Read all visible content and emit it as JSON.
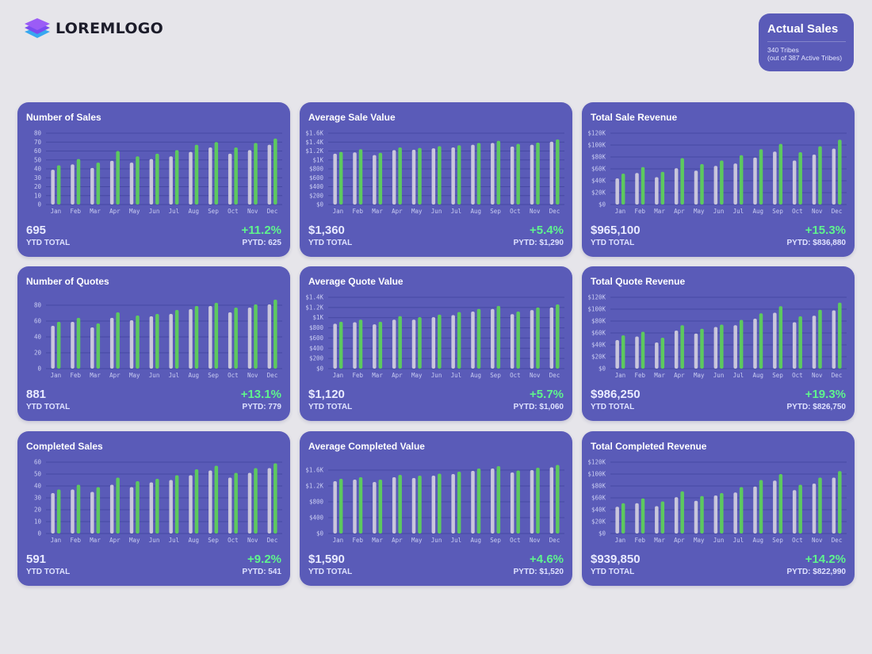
{
  "header": {
    "logo_text": "LOREMLOGO",
    "logo_icon": "stacked-layers-icon"
  },
  "summary": {
    "title": "Actual Sales",
    "line1": "340 Tribes",
    "line2": "(out of 387 Active Tribes)"
  },
  "colors": {
    "current_year_bar": "#5dc95f",
    "previous_year_bar": "#c9c6dc",
    "card_background": "#5a5bb8",
    "growth_text": "#5ff48d"
  },
  "cards": [
    {
      "title": "Number of Sales",
      "ytd_value": "695",
      "ytd_label": "YTD TOTAL",
      "growth": "+11.2%",
      "pytd": "PYTD: 625"
    },
    {
      "title": "Average Sale Value",
      "ytd_value": "$1,360",
      "ytd_label": "YTD TOTAL",
      "growth": "+5.4%",
      "pytd": "PYTD: $1,290"
    },
    {
      "title": "Total Sale Revenue",
      "ytd_value": "$965,100",
      "ytd_label": "YTD TOTAL",
      "growth": "+15.3%",
      "pytd": "PYTD: $836,880"
    },
    {
      "title": "Number of Quotes",
      "ytd_value": "881",
      "ytd_label": "YTD TOTAL",
      "growth": "+13.1%",
      "pytd": "PYTD: 779"
    },
    {
      "title": "Average Quote Value",
      "ytd_value": "$1,120",
      "ytd_label": "YTD TOTAL",
      "growth": "+5.7%",
      "pytd": "PYTD: $1,060"
    },
    {
      "title": "Total Quote Revenue",
      "ytd_value": "$986,250",
      "ytd_label": "YTD TOTAL",
      "growth": "+19.3%",
      "pytd": "PYTD: $826,750"
    },
    {
      "title": "Completed Sales",
      "ytd_value": "591",
      "ytd_label": "YTD TOTAL",
      "growth": "+9.2%",
      "pytd": "PYTD: 541"
    },
    {
      "title": "Average Completed Value",
      "ytd_value": "$1,590",
      "ytd_label": "YTD TOTAL",
      "growth": "+4.6%",
      "pytd": "PYTD: $1,520"
    },
    {
      "title": "Total Completed Revenue",
      "ytd_value": "$939,850",
      "ytd_label": "YTD TOTAL",
      "growth": "+14.2%",
      "pytd": "PYTD: $822,990"
    }
  ],
  "chart_data": [
    {
      "type": "bar",
      "title": "Number of Sales",
      "xlabel": "",
      "ylabel": "",
      "categories": [
        "Jan",
        "Feb",
        "Mar",
        "Apr",
        "May",
        "Jun",
        "Jul",
        "Aug",
        "Sep",
        "Oct",
        "Nov",
        "Dec"
      ],
      "ylim": [
        0,
        80
      ],
      "yticks": [
        0,
        10,
        20,
        30,
        40,
        50,
        60,
        70,
        80
      ],
      "ytick_labels": [
        "0",
        "10",
        "20",
        "30",
        "40",
        "50",
        "60",
        "70",
        "80"
      ],
      "series": [
        {
          "values": [
            39,
            45,
            41,
            49,
            47,
            51,
            54,
            59,
            64,
            57,
            61,
            67
          ]
        },
        {
          "values": [
            44,
            51,
            47,
            60,
            54,
            57,
            61,
            67,
            70,
            64,
            69,
            74
          ]
        }
      ]
    },
    {
      "type": "bar",
      "title": "Average Sale Value",
      "xlabel": "",
      "ylabel": "",
      "categories": [
        "Jan",
        "Feb",
        "Mar",
        "Apr",
        "May",
        "Jun",
        "Jul",
        "Aug",
        "Sep",
        "Oct",
        "Nov",
        "Dec"
      ],
      "ylim": [
        0,
        1600
      ],
      "yticks": [
        0,
        200,
        400,
        600,
        800,
        1000,
        1200,
        1400,
        1600
      ],
      "ytick_labels": [
        "$0",
        "$200",
        "$400",
        "$600",
        "$800",
        "$1K",
        "$1.2K",
        "$1.4K",
        "$1.6K"
      ],
      "series": [
        {
          "values": [
            1140,
            1170,
            1110,
            1220,
            1230,
            1260,
            1280,
            1340,
            1380,
            1300,
            1340,
            1410
          ]
        },
        {
          "values": [
            1180,
            1240,
            1160,
            1280,
            1270,
            1310,
            1330,
            1380,
            1430,
            1360,
            1390,
            1460
          ]
        }
      ]
    },
    {
      "type": "bar",
      "title": "Total Sale Revenue",
      "xlabel": "",
      "ylabel": "",
      "categories": [
        "Jan",
        "Feb",
        "Mar",
        "Apr",
        "May",
        "Jun",
        "Jul",
        "Aug",
        "Sep",
        "Oct",
        "Nov",
        "Dec"
      ],
      "ylim": [
        0,
        120000
      ],
      "yticks": [
        0,
        20000,
        40000,
        60000,
        80000,
        100000,
        120000
      ],
      "ytick_labels": [
        "$0",
        "$20K",
        "$40K",
        "$60K",
        "$80K",
        "$100K",
        "$120K"
      ],
      "series": [
        {
          "values": [
            44000,
            53000,
            46000,
            61000,
            57000,
            65000,
            69000,
            79000,
            89000,
            74000,
            84000,
            94000
          ]
        },
        {
          "values": [
            52000,
            63000,
            55000,
            78000,
            68000,
            74000,
            83000,
            93000,
            102000,
            88000,
            98000,
            109000
          ]
        }
      ]
    },
    {
      "type": "bar",
      "title": "Number of Quotes",
      "xlabel": "",
      "ylabel": "",
      "categories": [
        "Jan",
        "Feb",
        "Mar",
        "Apr",
        "May",
        "Jun",
        "Jul",
        "Aug",
        "Sep",
        "Oct",
        "Nov",
        "Dec"
      ],
      "ylim": [
        0,
        90
      ],
      "yticks": [
        0,
        20,
        40,
        60,
        80
      ],
      "ytick_labels": [
        "0",
        "20",
        "40",
        "60",
        "80"
      ],
      "series": [
        {
          "values": [
            54,
            59,
            52,
            64,
            61,
            66,
            69,
            75,
            79,
            71,
            77,
            81
          ]
        },
        {
          "values": [
            59,
            64,
            57,
            71,
            67,
            69,
            74,
            79,
            83,
            77,
            81,
            87
          ]
        }
      ]
    },
    {
      "type": "bar",
      "title": "Average Quote Value",
      "xlabel": "",
      "ylabel": "",
      "categories": [
        "Jan",
        "Feb",
        "Mar",
        "Apr",
        "May",
        "Jun",
        "Jul",
        "Aug",
        "Sep",
        "Oct",
        "Nov",
        "Dec"
      ],
      "ylim": [
        0,
        1400
      ],
      "yticks": [
        0,
        200,
        400,
        600,
        800,
        1000,
        1200,
        1400
      ],
      "ytick_labels": [
        "$0",
        "$200",
        "$400",
        "$600",
        "$800",
        "$1K",
        "$1.2K",
        "$1.4K"
      ],
      "series": [
        {
          "values": [
            880,
            910,
            870,
            960,
            960,
            1010,
            1050,
            1120,
            1170,
            1070,
            1150,
            1200
          ]
        },
        {
          "values": [
            920,
            960,
            920,
            1030,
            1010,
            1060,
            1110,
            1170,
            1230,
            1120,
            1200,
            1260
          ]
        }
      ]
    },
    {
      "type": "bar",
      "title": "Total Quote Revenue",
      "xlabel": "",
      "ylabel": "",
      "categories": [
        "Jan",
        "Feb",
        "Mar",
        "Apr",
        "May",
        "Jun",
        "Jul",
        "Aug",
        "Sep",
        "Oct",
        "Nov",
        "Dec"
      ],
      "ylim": [
        0,
        120000
      ],
      "yticks": [
        0,
        20000,
        40000,
        60000,
        80000,
        100000,
        120000
      ],
      "ytick_labels": [
        "$0",
        "$20K",
        "$40K",
        "$60K",
        "$80K",
        "$100K",
        "$120K"
      ],
      "series": [
        {
          "values": [
            48000,
            54000,
            44000,
            64000,
            59000,
            70000,
            73000,
            84000,
            94000,
            78000,
            89000,
            98000
          ]
        },
        {
          "values": [
            56000,
            62000,
            52000,
            73000,
            67000,
            74000,
            82000,
            93000,
            105000,
            88000,
            99000,
            111000
          ]
        }
      ]
    },
    {
      "type": "bar",
      "title": "Completed Sales",
      "xlabel": "",
      "ylabel": "",
      "categories": [
        "Jan",
        "Feb",
        "Mar",
        "Apr",
        "May",
        "Jun",
        "Jul",
        "Aug",
        "Sep",
        "Oct",
        "Nov",
        "Dec"
      ],
      "ylim": [
        0,
        60
      ],
      "yticks": [
        0,
        10,
        20,
        30,
        40,
        50,
        60
      ],
      "ytick_labels": [
        "0",
        "10",
        "20",
        "30",
        "40",
        "50",
        "60"
      ],
      "series": [
        {
          "values": [
            34,
            37,
            35,
            41,
            39,
            43,
            45,
            49,
            53,
            47,
            51,
            55
          ]
        },
        {
          "values": [
            37,
            41,
            39,
            47,
            44,
            46,
            49,
            54,
            57,
            51,
            55,
            59
          ]
        }
      ]
    },
    {
      "type": "bar",
      "title": "Average Completed Value",
      "xlabel": "",
      "ylabel": "",
      "categories": [
        "Jan",
        "Feb",
        "Mar",
        "Apr",
        "May",
        "Jun",
        "Jul",
        "Aug",
        "Sep",
        "Oct",
        "Nov",
        "Dec"
      ],
      "ylim": [
        0,
        1800
      ],
      "yticks": [
        0,
        400,
        800,
        1200,
        1600
      ],
      "ytick_labels": [
        "$0",
        "$400",
        "$800",
        "$1.2K",
        "$1.6K"
      ],
      "series": [
        {
          "values": [
            1320,
            1360,
            1300,
            1420,
            1400,
            1460,
            1500,
            1580,
            1640,
            1540,
            1600,
            1670
          ]
        },
        {
          "values": [
            1380,
            1420,
            1360,
            1480,
            1460,
            1510,
            1560,
            1640,
            1700,
            1590,
            1660,
            1730
          ]
        }
      ]
    },
    {
      "type": "bar",
      "title": "Total Completed Revenue",
      "xlabel": "",
      "ylabel": "",
      "categories": [
        "Jan",
        "Feb",
        "Mar",
        "Apr",
        "May",
        "Jun",
        "Jul",
        "Aug",
        "Sep",
        "Oct",
        "Nov",
        "Dec"
      ],
      "ylim": [
        0,
        120000
      ],
      "yticks": [
        0,
        20000,
        40000,
        60000,
        80000,
        100000,
        120000
      ],
      "ytick_labels": [
        "$0",
        "$20K",
        "$40K",
        "$60K",
        "$80K",
        "$100K",
        "$120K"
      ],
      "series": [
        {
          "values": [
            45000,
            51000,
            46000,
            61000,
            55000,
            64000,
            69000,
            79000,
            89000,
            73000,
            84000,
            94000
          ]
        },
        {
          "values": [
            51000,
            59000,
            54000,
            71000,
            63000,
            68000,
            78000,
            90000,
            100000,
            82000,
            94000,
            105000
          ]
        }
      ]
    }
  ]
}
